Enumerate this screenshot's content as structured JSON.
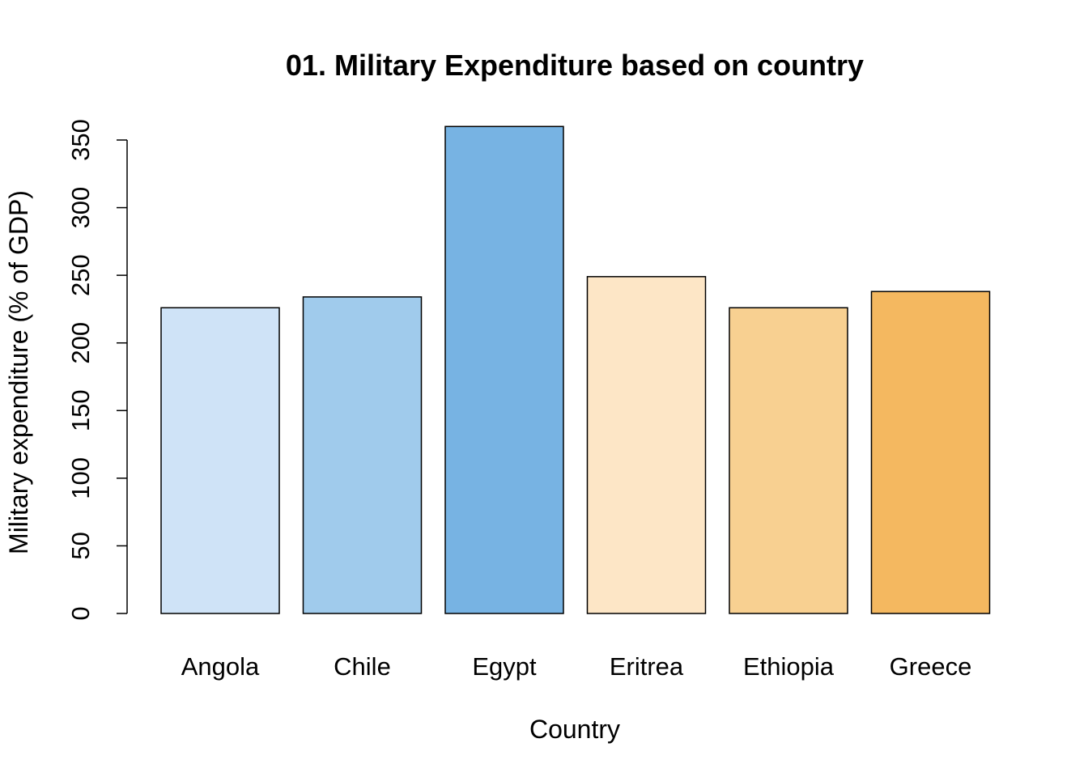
{
  "chart_data": {
    "type": "bar",
    "title": "01. Military Expenditure based on country",
    "xlabel": "Country",
    "ylabel": "Military expenditure (% of GDP)",
    "categories": [
      "Angola",
      "Chile",
      "Egypt",
      "Eritrea",
      "Ethiopia",
      "Greece"
    ],
    "values": [
      226,
      234,
      360,
      249,
      226,
      238
    ],
    "colors": [
      "#cfe3f7",
      "#a0cbec",
      "#77b3e3",
      "#fde6c6",
      "#f8d091",
      "#f4b860"
    ],
    "ylim": [
      0,
      350
    ],
    "yticks": [
      0,
      50,
      100,
      150,
      200,
      250,
      300,
      350
    ],
    "ytick_labels": [
      "0",
      "50",
      "100",
      "150",
      "200",
      "250",
      "300",
      "350"
    ],
    "grid": false,
    "legend": "none"
  }
}
